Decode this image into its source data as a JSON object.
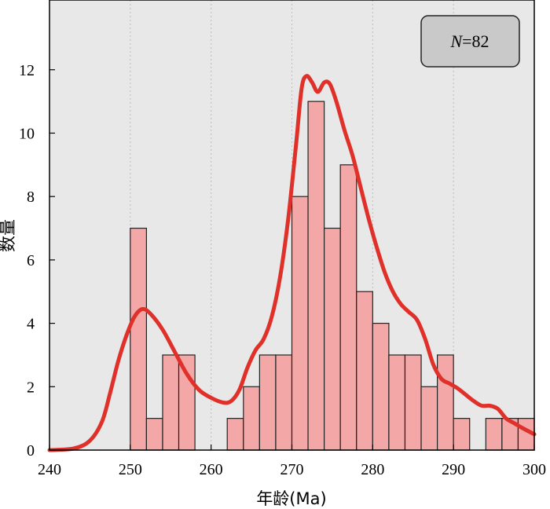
{
  "chart_data": {
    "type": "bar",
    "xlabel": "年龄(Ma)",
    "ylabel": "数量",
    "xlim": [
      240,
      300
    ],
    "ylim": [
      0,
      14.2
    ],
    "x_ticks": [
      240,
      250,
      260,
      270,
      280,
      290,
      300
    ],
    "y_ticks": [
      0,
      2,
      4,
      6,
      8,
      10,
      12
    ],
    "grid": "vertical dotted",
    "background": "#e8e8e8",
    "bar_color": "#f4a7a7",
    "curve_color": "#e0302a",
    "annotation": {
      "italic": "N",
      "text": "=82"
    },
    "bins": [
      {
        "x0": 250,
        "x1": 252,
        "count": 7
      },
      {
        "x0": 252,
        "x1": 254,
        "count": 1
      },
      {
        "x0": 254,
        "x1": 256,
        "count": 3
      },
      {
        "x0": 256,
        "x1": 258,
        "count": 3
      },
      {
        "x0": 262,
        "x1": 264,
        "count": 1
      },
      {
        "x0": 264,
        "x1": 266,
        "count": 2
      },
      {
        "x0": 266,
        "x1": 268,
        "count": 3
      },
      {
        "x0": 268,
        "x1": 270,
        "count": 3
      },
      {
        "x0": 270,
        "x1": 272,
        "count": 8
      },
      {
        "x0": 272,
        "x1": 274,
        "count": 11
      },
      {
        "x0": 274,
        "x1": 276,
        "count": 7
      },
      {
        "x0": 276,
        "x1": 278,
        "count": 9
      },
      {
        "x0": 278,
        "x1": 280,
        "count": 5
      },
      {
        "x0": 280,
        "x1": 282,
        "count": 4
      },
      {
        "x0": 282,
        "x1": 284,
        "count": 3
      },
      {
        "x0": 284,
        "x1": 286,
        "count": 3
      },
      {
        "x0": 286,
        "x1": 288,
        "count": 2
      },
      {
        "x0": 288,
        "x1": 290,
        "count": 3
      },
      {
        "x0": 290,
        "x1": 292,
        "count": 1
      },
      {
        "x0": 294,
        "x1": 296,
        "count": 1
      },
      {
        "x0": 296,
        "x1": 298,
        "count": 1
      },
      {
        "x0": 298,
        "x1": 300,
        "count": 1
      }
    ],
    "density_curve": [
      [
        240,
        0
      ],
      [
        243,
        0.05
      ],
      [
        245,
        0.3
      ],
      [
        246.5,
        0.9
      ],
      [
        247.5,
        1.8
      ],
      [
        248.5,
        2.8
      ],
      [
        249.5,
        3.6
      ],
      [
        250.5,
        4.2
      ],
      [
        251.5,
        4.45
      ],
      [
        252.5,
        4.3
      ],
      [
        254,
        3.8
      ],
      [
        255.5,
        3.1
      ],
      [
        257,
        2.4
      ],
      [
        258.5,
        1.9
      ],
      [
        260,
        1.65
      ],
      [
        261.5,
        1.5
      ],
      [
        262.5,
        1.55
      ],
      [
        263.5,
        1.9
      ],
      [
        264.5,
        2.6
      ],
      [
        265.5,
        3.15
      ],
      [
        266.5,
        3.5
      ],
      [
        267.5,
        4.2
      ],
      [
        268.5,
        5.4
      ],
      [
        269.5,
        7.2
      ],
      [
        270.5,
        9.6
      ],
      [
        271.2,
        11.4
      ],
      [
        271.8,
        11.8
      ],
      [
        272.5,
        11.6
      ],
      [
        273.2,
        11.3
      ],
      [
        274,
        11.6
      ],
      [
        274.7,
        11.55
      ],
      [
        275.5,
        11.0
      ],
      [
        276.5,
        10.1
      ],
      [
        277.5,
        9.3
      ],
      [
        278.5,
        8.3
      ],
      [
        279.5,
        7.3
      ],
      [
        280.5,
        6.4
      ],
      [
        281.5,
        5.6
      ],
      [
        282.5,
        5.0
      ],
      [
        283.5,
        4.6
      ],
      [
        284.5,
        4.35
      ],
      [
        285.5,
        4.1
      ],
      [
        286.5,
        3.5
      ],
      [
        287.5,
        2.7
      ],
      [
        288.5,
        2.25
      ],
      [
        289.5,
        2.1
      ],
      [
        290.5,
        1.95
      ],
      [
        291.5,
        1.75
      ],
      [
        292.5,
        1.55
      ],
      [
        293.5,
        1.4
      ],
      [
        294.5,
        1.4
      ],
      [
        295.5,
        1.3
      ],
      [
        296.5,
        1.0
      ],
      [
        297.5,
        0.85
      ],
      [
        298.5,
        0.7
      ],
      [
        300,
        0.5
      ]
    ]
  }
}
